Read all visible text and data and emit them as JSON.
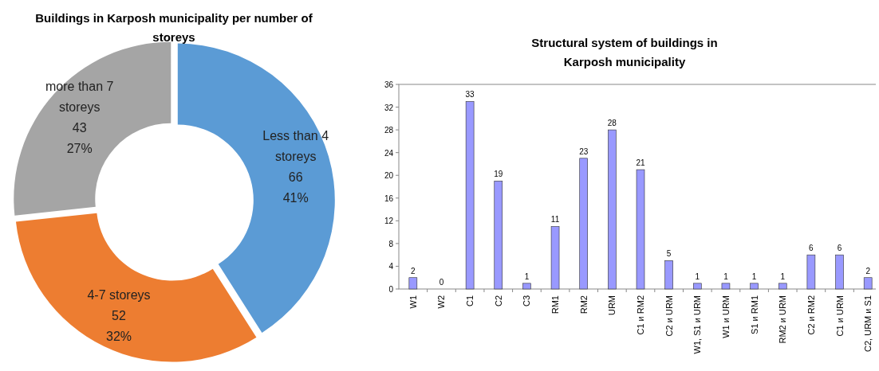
{
  "chart_data": [
    {
      "type": "donut",
      "title": "Buildings in Karposh municipality  per number of storeys",
      "categories": [
        "Less than 4 storeys",
        "4-7 storeys",
        "more than 7 storeys"
      ],
      "values": [
        66,
        52,
        43
      ],
      "colors": [
        "#5b9bd5",
        "#ed7d31",
        "#a5a5a5"
      ],
      "value_labels": [
        "66\n41%",
        "52\n32%",
        "43\n27%"
      ]
    },
    {
      "type": "bar",
      "title": "Structural system of buildings in Karposh municipality",
      "categories": [
        "W1",
        "W2",
        "C1",
        "C2",
        "C3",
        "RM1",
        "RM2",
        "URM",
        "C1 и RM2",
        "C2 и URM",
        "W1, S1 и URM",
        "W1 и URM",
        "S1 и RM1",
        "RM2 и URM",
        "C2 и RM2",
        "C1 и URM",
        "C2, URM и S1"
      ],
      "values": [
        2,
        0,
        33,
        19,
        1,
        11,
        23,
        28,
        21,
        5,
        1,
        1,
        1,
        1,
        6,
        6,
        2
      ],
      "color": "#9999ff",
      "ylim": [
        0,
        36
      ],
      "yticks": [
        0,
        4,
        8,
        12,
        16,
        20,
        24,
        28,
        32,
        36
      ],
      "data_labels": true
    }
  ]
}
